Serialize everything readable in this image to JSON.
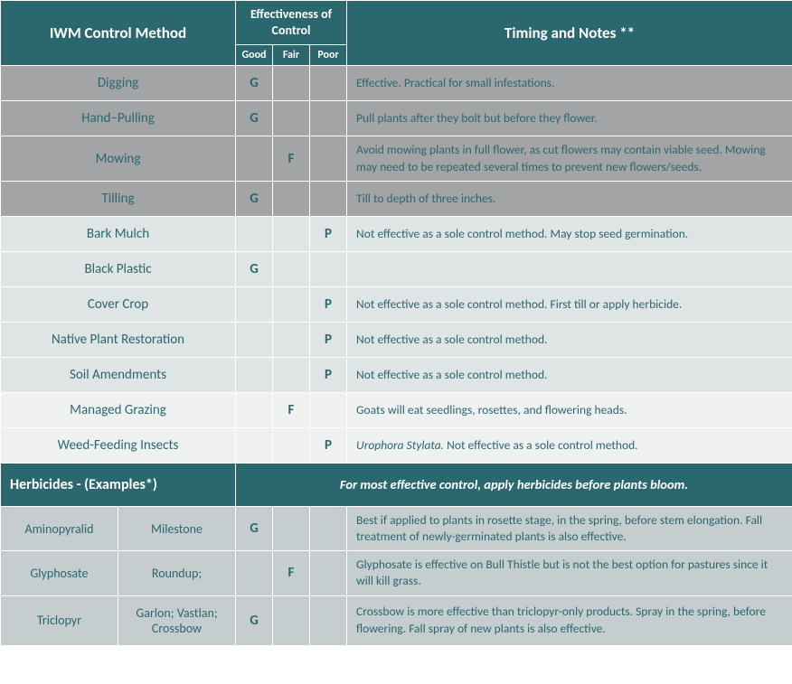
{
  "colors": {
    "teal": "#2b676f",
    "white": "#ffffff",
    "grey_dark": "#a2a4a6",
    "grey_med": "#c5cdce",
    "grey_light": "#dfe4e4",
    "grey_vlight": "#eef1f0"
  },
  "header": {
    "method": "IWM Control Method",
    "effectiveness": "Effectiveness of Control",
    "good": "Good",
    "fair": "Fair",
    "poor": "Poor",
    "notes": "Timing and Notes **"
  },
  "rows": [
    {
      "method": "Digging",
      "good": "G",
      "fair": "",
      "poor": "",
      "bg": "#a2a4a6",
      "notes": "Effective. Practical for small infestations."
    },
    {
      "method": "Hand–Pulling",
      "good": "G",
      "fair": "",
      "poor": "",
      "bg": "#a2a4a6",
      "notes": "Pull plants after they bolt but before they flower."
    },
    {
      "method": "Mowing",
      "good": "",
      "fair": "F",
      "poor": "",
      "bg": "#a2a4a6",
      "notes": "Avoid mowing plants in full flower, as cut flowers may contain viable seed. Mowing may need to be repeated several times to prevent new flowers/seeds."
    },
    {
      "method": "Tilling",
      "good": "G",
      "fair": "",
      "poor": "",
      "bg": "#a2a4a6",
      "notes": "Till to depth of three inches."
    },
    {
      "method": "Bark Mulch",
      "good": "",
      "fair": "",
      "poor": "P",
      "bg": "#dfe4e4",
      "notes": "Not effective as a sole control method.  May stop seed germination."
    },
    {
      "method": "Black Plastic",
      "good": "G",
      "fair": "",
      "poor": "",
      "bg": "#dfe4e4",
      "notes": ""
    },
    {
      "method": "Cover Crop",
      "good": "",
      "fair": "",
      "poor": "P",
      "bg": "#dfe4e4",
      "notes": "Not effective as a sole control method.  First till or apply herbicide."
    },
    {
      "method": "Native Plant Restoration",
      "good": "",
      "fair": "",
      "poor": "P",
      "bg": "#dfe4e4",
      "notes": "Not effective as a sole control method."
    },
    {
      "method": "Soil Amendments",
      "good": "",
      "fair": "",
      "poor": "P",
      "bg": "#dfe4e4",
      "notes": "Not effective as a sole control method."
    },
    {
      "method": "Managed Grazing",
      "good": "",
      "fair": "F",
      "poor": "",
      "bg": "#eef1f0",
      "notes": "Goats will eat seedlings, rosettes, and flowering heads."
    },
    {
      "method": "Weed-Feeding Insects",
      "good": "",
      "fair": "",
      "poor": "P",
      "bg": "#eef1f0",
      "notes_html": "<span class='italic'>Urophora Stylata.</span> Not effective as a sole control method."
    }
  ],
  "section": {
    "left": "Herbicides - (Examples*)",
    "right": "For most effective control, apply herbicides before plants bloom."
  },
  "herbicides": [
    {
      "chem": "Aminopyralid",
      "prod": "Milestone",
      "good": "G",
      "fair": "",
      "poor": "",
      "bg": "#c5cdce",
      "notes": "Best if applied to plants in rosette stage, in the spring, before stem elongation. Fall treatment of newly-germinated plants is also effective."
    },
    {
      "chem": "Glyphosate",
      "prod": "Roundup;",
      "good": "",
      "fair": "F",
      "poor": "",
      "bg": "#c5cdce",
      "notes": "Glyphosate is effective on Bull Thistle but is not the best option for pastures since it will kill grass."
    },
    {
      "chem": "Triclopyr",
      "prod": "Garlon; Vastlan; Crossbow",
      "good": "G",
      "fair": "",
      "poor": "",
      "bg": "#c5cdce",
      "notes": "Crossbow is more effective than triclopyr-only products. Spray in the spring, before flowering. Fall spray of new plants is also effective."
    }
  ]
}
